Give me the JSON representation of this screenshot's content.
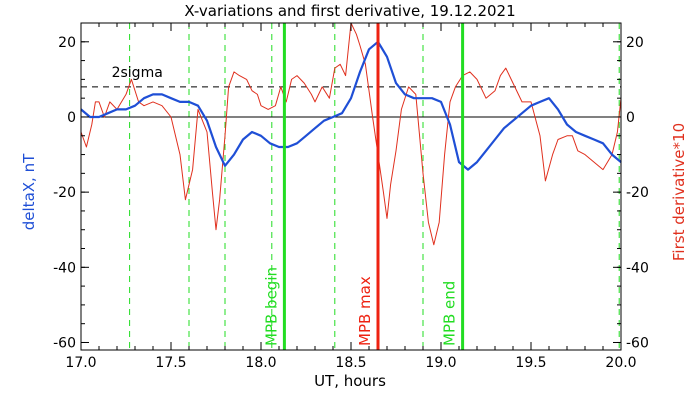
{
  "chart_data": {
    "type": "line",
    "title": "X-variations and first derivative, 19.12.2021",
    "xlabel": "UT, hours",
    "ylabel_left": "deltaX, nT",
    "ylabel_right": "First derivative*10",
    "xlim": [
      17.0,
      20.0
    ],
    "ylim": [
      -62,
      25
    ],
    "xticks": [
      17.0,
      17.5,
      18.0,
      18.5,
      19.0,
      19.5,
      20.0
    ],
    "xtick_labels": [
      "17.0",
      "17.5",
      "18.0",
      "18.5",
      "19.0",
      "19.5",
      "20.0"
    ],
    "yticks": [
      20,
      0,
      -20,
      -40,
      -60
    ],
    "ytick_labels": [
      "20",
      "0",
      "-20",
      "-40",
      "-60"
    ],
    "colors": {
      "deltaX": "#1f4fd6",
      "derivative": "#e0301e",
      "mpb_edges": "#22dd22",
      "mpb_max": "#ee2211",
      "sigma": "#000000"
    },
    "sigma_level": 8,
    "sigma_label": "2sigma",
    "dashed_markers_x": [
      17.27,
      17.6,
      17.8,
      18.06,
      18.41,
      18.9,
      19.99
    ],
    "markers": [
      {
        "label": "MPB begin",
        "x": 18.13,
        "color": "#22dd22"
      },
      {
        "label": "MPB max",
        "x": 18.65,
        "color": "#ee2211"
      },
      {
        "label": "MPB end",
        "x": 19.12,
        "color": "#22dd22"
      }
    ],
    "series": [
      {
        "id": "deltaX",
        "x": [
          17.0,
          17.05,
          17.1,
          17.15,
          17.2,
          17.25,
          17.3,
          17.35,
          17.4,
          17.45,
          17.5,
          17.55,
          17.6,
          17.65,
          17.7,
          17.75,
          17.8,
          17.85,
          17.9,
          17.95,
          18.0,
          18.05,
          18.1,
          18.15,
          18.2,
          18.25,
          18.3,
          18.35,
          18.4,
          18.45,
          18.5,
          18.55,
          18.6,
          18.65,
          18.7,
          18.75,
          18.8,
          18.85,
          18.9,
          18.95,
          19.0,
          19.05,
          19.1,
          19.15,
          19.2,
          19.25,
          19.3,
          19.35,
          19.4,
          19.45,
          19.5,
          19.55,
          19.6,
          19.65,
          19.7,
          19.75,
          19.8,
          19.85,
          19.9,
          19.95,
          20.0
        ],
        "y": [
          2,
          0,
          0,
          1,
          2,
          2,
          3,
          5,
          6,
          6,
          5,
          4,
          4,
          3,
          -1,
          -8,
          -13,
          -10,
          -6,
          -4,
          -5,
          -7,
          -8,
          -8,
          -7,
          -5,
          -3,
          -1,
          0,
          1,
          5,
          12,
          18,
          20,
          16,
          9,
          6,
          5,
          5,
          5,
          4,
          -2,
          -12,
          -14,
          -12,
          -9,
          -6,
          -3,
          -1,
          1,
          3,
          4,
          5,
          2,
          -2,
          -4,
          -5,
          -6,
          -7,
          -10,
          -12
        ]
      },
      {
        "id": "derivative",
        "x": [
          17.0,
          17.03,
          17.06,
          17.08,
          17.1,
          17.13,
          17.16,
          17.2,
          17.25,
          17.28,
          17.32,
          17.35,
          17.4,
          17.45,
          17.5,
          17.55,
          17.58,
          17.62,
          17.65,
          17.7,
          17.73,
          17.75,
          17.77,
          17.8,
          17.82,
          17.85,
          17.88,
          17.92,
          17.95,
          17.98,
          18.0,
          18.04,
          18.08,
          18.11,
          18.14,
          18.17,
          18.2,
          18.24,
          18.28,
          18.3,
          18.34,
          18.38,
          18.41,
          18.44,
          18.47,
          18.5,
          18.53,
          18.55,
          18.58,
          18.62,
          18.65,
          18.68,
          18.7,
          18.72,
          18.75,
          18.78,
          18.82,
          18.86,
          18.9,
          18.93,
          18.96,
          18.99,
          19.02,
          19.05,
          19.08,
          19.12,
          19.16,
          19.2,
          19.25,
          19.3,
          19.33,
          19.36,
          19.4,
          19.45,
          19.5,
          19.55,
          19.58,
          19.62,
          19.65,
          19.7,
          19.73,
          19.76,
          19.8,
          19.85,
          19.9,
          19.95,
          19.98,
          20.0
        ],
        "y": [
          -4,
          -8,
          -2,
          4,
          4,
          0,
          4,
          2,
          6,
          10,
          4,
          3,
          4,
          3,
          0,
          -10,
          -22,
          -14,
          2,
          -4,
          -20,
          -30,
          -22,
          -5,
          8,
          12,
          11,
          10,
          7,
          6,
          3,
          2,
          3,
          8,
          4,
          10,
          11,
          9,
          6,
          4,
          8,
          5,
          13,
          14,
          11,
          25,
          22,
          19,
          14,
          0,
          -10,
          -20,
          -27,
          -18,
          -9,
          2,
          8,
          6,
          -15,
          -28,
          -34,
          -28,
          -10,
          4,
          8,
          11,
          12,
          10,
          5,
          7,
          11,
          13,
          9,
          4,
          4,
          -5,
          -17,
          -10,
          -6,
          -5,
          -5,
          -9,
          -10,
          -12,
          -14,
          -10,
          -4,
          5
        ]
      }
    ]
  }
}
